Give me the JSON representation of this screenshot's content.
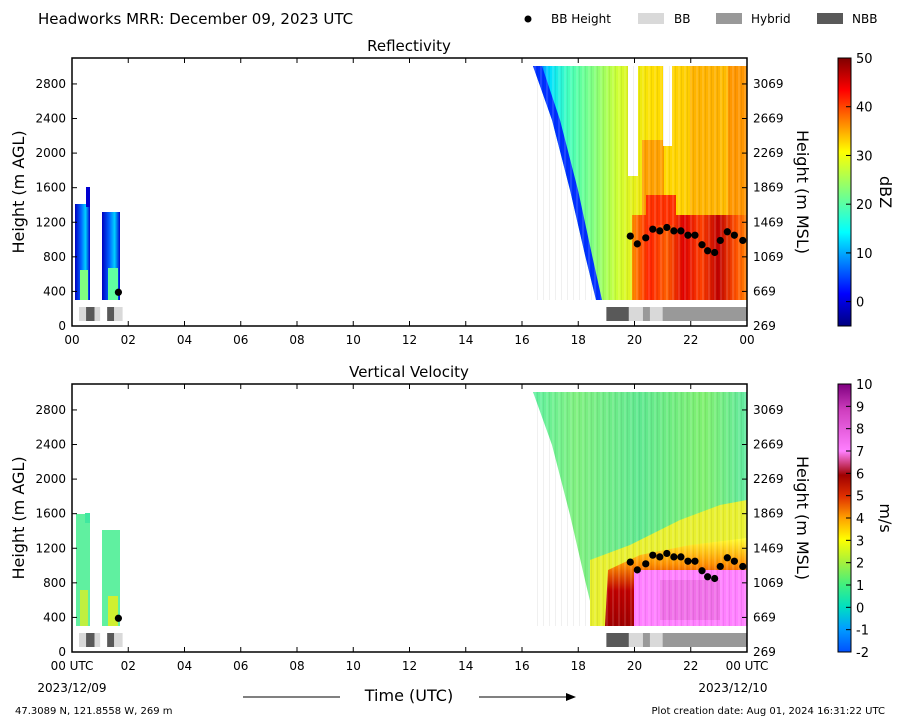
{
  "header": {
    "title": "Headworks MRR:  December 09, 2023 UTC",
    "legend": [
      {
        "label": "BB Height",
        "kind": "dot",
        "color": "#000000"
      },
      {
        "label": "BB",
        "kind": "box",
        "color": "#d9d9d9"
      },
      {
        "label": "Hybrid",
        "kind": "box",
        "color": "#999999"
      },
      {
        "label": "NBB",
        "kind": "box",
        "color": "#595959"
      }
    ]
  },
  "footer": {
    "location": "47.3089 N, 121.8558 W, 269 m",
    "created": "Plot creation date: Aug 01, 2024 16:31:22 UTC",
    "time_label": "Time (UTC)",
    "start_date": "2023/12/09",
    "end_date": "2023/12/10"
  },
  "chart_data": [
    {
      "type": "heatmap",
      "title": "Reflectivity",
      "ylabel": "Height (m AGL)",
      "ylabel_right": "Height (m MSL)",
      "colorbar_label": "dBZ",
      "colorbar_ticks": [
        "50",
        "40",
        "30",
        "20",
        "10",
        "0"
      ],
      "colorbar_range": [
        -5,
        50
      ],
      "x_ticks": [
        "00",
        "02",
        "04",
        "06",
        "08",
        "10",
        "12",
        "14",
        "16",
        "18",
        "20",
        "22",
        "00"
      ],
      "y_ticks_left": [
        "0",
        "400",
        "800",
        "1200",
        "1600",
        "2000",
        "2400",
        "2800"
      ],
      "y_ticks_right": [
        "269",
        "669",
        "1069",
        "1469",
        "1869",
        "2269",
        "2669",
        "3069"
      ],
      "xlim_hours": [
        0,
        24
      ],
      "ylim_m": [
        0,
        3100
      ],
      "bb_height_points": [
        {
          "x": 1.65,
          "y": 390
        },
        {
          "x": 19.85,
          "y": 1040
        },
        {
          "x": 20.1,
          "y": 950
        },
        {
          "x": 20.4,
          "y": 1020
        },
        {
          "x": 20.65,
          "y": 1120
        },
        {
          "x": 20.9,
          "y": 1100
        },
        {
          "x": 21.15,
          "y": 1140
        },
        {
          "x": 21.4,
          "y": 1100
        },
        {
          "x": 21.65,
          "y": 1100
        },
        {
          "x": 21.9,
          "y": 1050
        },
        {
          "x": 22.15,
          "y": 1050
        },
        {
          "x": 22.4,
          "y": 940
        },
        {
          "x": 22.6,
          "y": 870
        },
        {
          "x": 22.85,
          "y": 850
        },
        {
          "x": 23.05,
          "y": 990
        },
        {
          "x": 23.3,
          "y": 1090
        },
        {
          "x": 23.55,
          "y": 1050
        },
        {
          "x": 23.85,
          "y": 990
        }
      ],
      "bb_classification": [
        {
          "start": 0.25,
          "end": 0.5,
          "class": "BB"
        },
        {
          "start": 0.5,
          "end": 0.8,
          "class": "NBB"
        },
        {
          "start": 0.8,
          "end": 1.0,
          "class": "BB"
        },
        {
          "start": 1.25,
          "end": 1.5,
          "class": "NBB"
        },
        {
          "start": 1.5,
          "end": 1.8,
          "class": "BB"
        },
        {
          "start": 19.0,
          "end": 19.8,
          "class": "NBB"
        },
        {
          "start": 19.8,
          "end": 20.3,
          "class": "BB"
        },
        {
          "start": 20.3,
          "end": 20.55,
          "class": "Hybrid"
        },
        {
          "start": 20.55,
          "end": 21.0,
          "class": "BB"
        },
        {
          "start": 21.0,
          "end": 24.0,
          "class": "Hybrid"
        }
      ]
    },
    {
      "type": "heatmap",
      "title": "Vertical Velocity",
      "ylabel": "Height (m AGL)",
      "ylabel_right": "Height (m MSL)",
      "colorbar_label": "m/s",
      "colorbar_ticks": [
        "10",
        "9",
        "8",
        "7",
        "6",
        "5",
        "4",
        "3",
        "2",
        "1",
        "0",
        "-1",
        "-2"
      ],
      "colorbar_range": [
        -2,
        10
      ],
      "x_ticks": [
        "00 UTC",
        "02",
        "04",
        "06",
        "08",
        "10",
        "12",
        "14",
        "16",
        "18",
        "20",
        "22",
        "00 UTC"
      ],
      "y_ticks_left": [
        "0",
        "400",
        "800",
        "1200",
        "1600",
        "2000",
        "2400",
        "2800"
      ],
      "y_ticks_right": [
        "269",
        "669",
        "1069",
        "1469",
        "1869",
        "2269",
        "2669",
        "3069"
      ],
      "xlim_hours": [
        0,
        24
      ],
      "ylim_m": [
        0,
        3100
      ],
      "bb_height_points": [
        {
          "x": 1.65,
          "y": 390
        },
        {
          "x": 19.85,
          "y": 1040
        },
        {
          "x": 20.1,
          "y": 950
        },
        {
          "x": 20.4,
          "y": 1020
        },
        {
          "x": 20.65,
          "y": 1120
        },
        {
          "x": 20.9,
          "y": 1100
        },
        {
          "x": 21.15,
          "y": 1140
        },
        {
          "x": 21.4,
          "y": 1100
        },
        {
          "x": 21.65,
          "y": 1100
        },
        {
          "x": 21.9,
          "y": 1050
        },
        {
          "x": 22.15,
          "y": 1050
        },
        {
          "x": 22.4,
          "y": 940
        },
        {
          "x": 22.6,
          "y": 870
        },
        {
          "x": 22.85,
          "y": 850
        },
        {
          "x": 23.05,
          "y": 990
        },
        {
          "x": 23.3,
          "y": 1090
        },
        {
          "x": 23.55,
          "y": 1050
        },
        {
          "x": 23.85,
          "y": 990
        }
      ],
      "bb_classification": [
        {
          "start": 0.25,
          "end": 0.5,
          "class": "BB"
        },
        {
          "start": 0.5,
          "end": 0.8,
          "class": "NBB"
        },
        {
          "start": 0.8,
          "end": 1.0,
          "class": "BB"
        },
        {
          "start": 1.25,
          "end": 1.5,
          "class": "NBB"
        },
        {
          "start": 1.5,
          "end": 1.8,
          "class": "BB"
        },
        {
          "start": 19.0,
          "end": 19.8,
          "class": "NBB"
        },
        {
          "start": 19.8,
          "end": 20.3,
          "class": "BB"
        },
        {
          "start": 20.3,
          "end": 20.55,
          "class": "Hybrid"
        },
        {
          "start": 20.55,
          "end": 21.0,
          "class": "BB"
        },
        {
          "start": 21.0,
          "end": 24.0,
          "class": "Hybrid"
        }
      ]
    }
  ]
}
